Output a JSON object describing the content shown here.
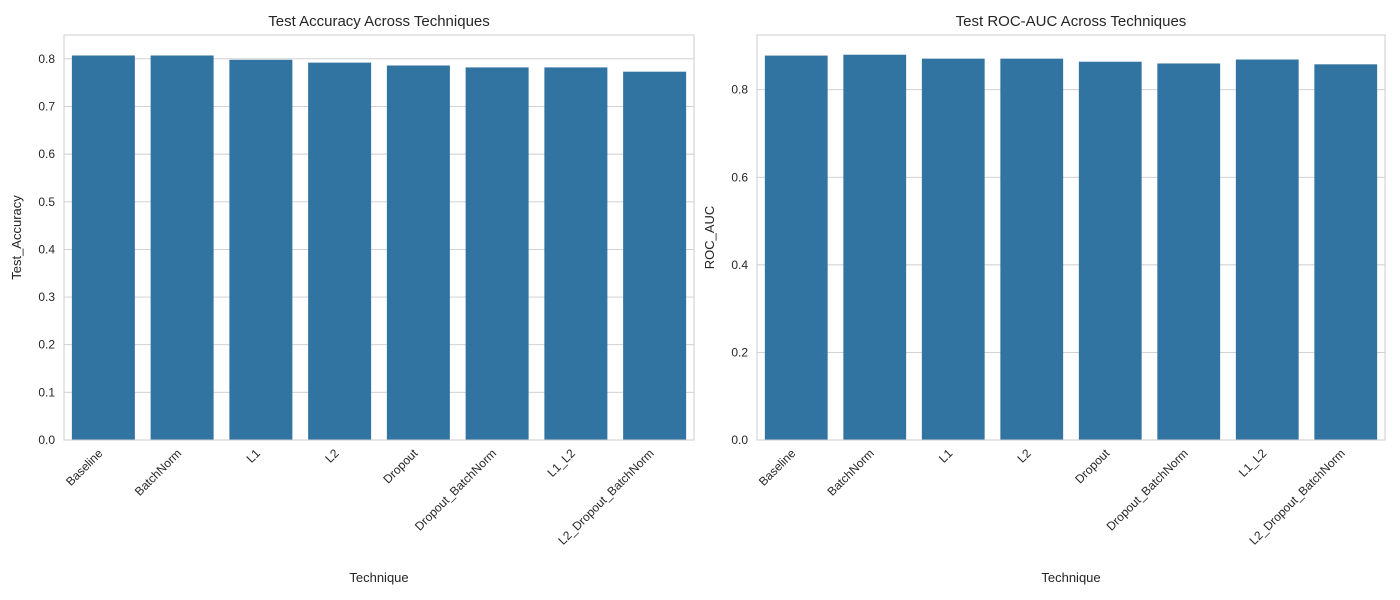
{
  "chart_data": [
    {
      "type": "bar",
      "title": "Test Accuracy Across Techniques",
      "xlabel": "Technique",
      "ylabel": "Test_Accuracy",
      "categories": [
        "Baseline",
        "BatchNorm",
        "L1",
        "L2",
        "Dropout",
        "Dropout_BatchNorm",
        "L1_L2",
        "L2_Dropout_BatchNorm"
      ],
      "values": [
        0.807,
        0.807,
        0.798,
        0.792,
        0.786,
        0.782,
        0.782,
        0.773
      ],
      "ylim": [
        0,
        0.85
      ],
      "yticks": [
        0.0,
        0.1,
        0.2,
        0.3,
        0.4,
        0.5,
        0.6,
        0.7,
        0.8
      ],
      "ytick_labels": [
        "0.0",
        "0.1",
        "0.2",
        "0.3",
        "0.4",
        "0.5",
        "0.6",
        "0.7",
        "0.8"
      ],
      "grid": true,
      "bar_color": "#3274a1"
    },
    {
      "type": "bar",
      "title": "Test ROC-AUC Across Techniques",
      "xlabel": "Technique",
      "ylabel": "ROC_AUC",
      "categories": [
        "Baseline",
        "BatchNorm",
        "L1",
        "L2",
        "Dropout",
        "Dropout_BatchNorm",
        "L1_L2",
        "L2_Dropout_BatchNorm"
      ],
      "values": [
        0.878,
        0.88,
        0.871,
        0.871,
        0.864,
        0.86,
        0.869,
        0.858
      ],
      "ylim": [
        0,
        0.925
      ],
      "yticks": [
        0.0,
        0.2,
        0.4,
        0.6,
        0.8
      ],
      "ytick_labels": [
        "0.0",
        "0.2",
        "0.4",
        "0.6",
        "0.8"
      ],
      "grid": true,
      "bar_color": "#3274a1"
    }
  ]
}
